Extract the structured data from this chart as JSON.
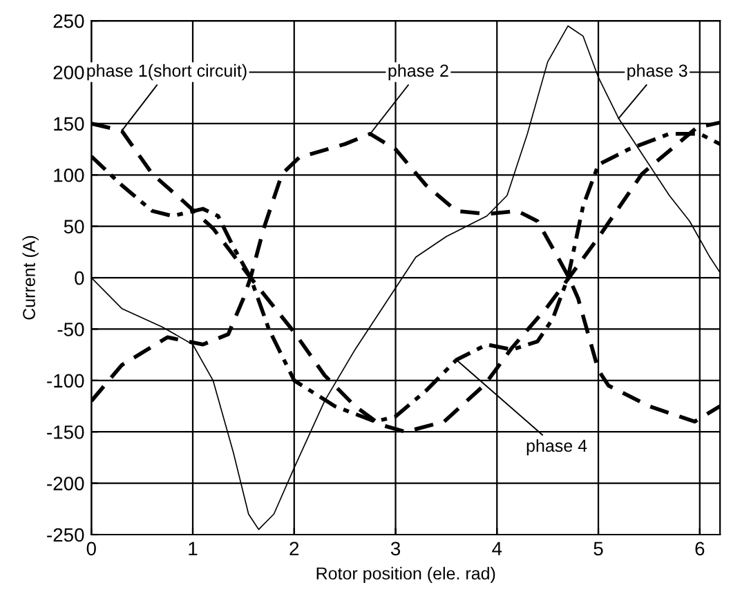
{
  "chart_data": {
    "type": "line",
    "xlabel": "Rotor position (ele. rad)",
    "ylabel": "Current (A)",
    "xlim": [
      0,
      6.2
    ],
    "xticks": [
      0,
      1,
      2,
      3,
      4,
      5,
      6
    ],
    "ylim": [
      -250,
      250
    ],
    "yticks": [
      -250,
      -200,
      -150,
      -100,
      -50,
      0,
      50,
      100,
      150,
      200,
      250
    ],
    "grid": true,
    "series": [
      {
        "name": "phase 1(short circuit)",
        "color": "#000000",
        "line_style": "dashed",
        "x": [
          0,
          0.3,
          0.6,
          0.9,
          1.2,
          1.57,
          2.0,
          2.3,
          2.6,
          2.85,
          3.1,
          3.48,
          3.88,
          4.15,
          4.5,
          4.71,
          5.0,
          5.43,
          5.97,
          6.2
        ],
        "values": [
          150,
          143,
          101,
          75,
          48,
          0,
          -53,
          -95,
          -125,
          -143,
          -150,
          -140,
          -104,
          -68,
          -28,
          0,
          39,
          101,
          146,
          151
        ]
      },
      {
        "name": "phase 2",
        "color": "#000000",
        "line_style": "dashed",
        "x": [
          0,
          0.3,
          0.75,
          1.1,
          1.35,
          1.5,
          1.57,
          1.7,
          1.88,
          2.05,
          2.5,
          2.75,
          3.0,
          3.3,
          3.6,
          3.9,
          4.2,
          4.4,
          4.6,
          4.71,
          4.8,
          5.0,
          5.1,
          5.5,
          5.95,
          6.2
        ],
        "values": [
          -120,
          -85,
          -58,
          -65,
          -55,
          -20,
          0,
          48,
          101,
          117,
          130,
          140,
          125,
          90,
          65,
          62,
          65,
          55,
          20,
          0,
          -20,
          -90,
          -105,
          -125,
          -140,
          -125
        ]
      },
      {
        "name": "phase 3",
        "color": "#000000",
        "line_style": "solid",
        "x": [
          0,
          0.3,
          0.7,
          1.0,
          1.2,
          1.4,
          1.55,
          1.65,
          1.8,
          2.0,
          2.3,
          2.6,
          2.9,
          3.2,
          3.5,
          3.9,
          4.1,
          4.3,
          4.5,
          4.7,
          4.85,
          5.0,
          5.2,
          5.4,
          5.7,
          5.9,
          6.1,
          6.2
        ],
        "values": [
          0,
          -30,
          -48,
          -65,
          -100,
          -170,
          -230,
          -245,
          -230,
          -185,
          -120,
          -70,
          -25,
          20,
          40,
          60,
          80,
          140,
          210,
          245,
          235,
          195,
          155,
          125,
          80,
          55,
          20,
          5
        ]
      },
      {
        "name": "phase 4",
        "color": "#000000",
        "line_style": "dashdot",
        "x": [
          0,
          0.3,
          0.6,
          0.8,
          1.1,
          1.25,
          1.4,
          1.57,
          1.75,
          2.0,
          2.4,
          2.8,
          3.0,
          3.3,
          3.6,
          3.9,
          4.15,
          4.4,
          4.55,
          4.7,
          4.85,
          5.0,
          5.3,
          5.7,
          6.0,
          6.2
        ],
        "values": [
          118,
          90,
          65,
          60,
          67,
          60,
          30,
          0,
          -50,
          -100,
          -125,
          -140,
          -135,
          -110,
          -80,
          -65,
          -70,
          -62,
          -40,
          0,
          70,
          110,
          125,
          140,
          140,
          130
        ]
      }
    ]
  }
}
